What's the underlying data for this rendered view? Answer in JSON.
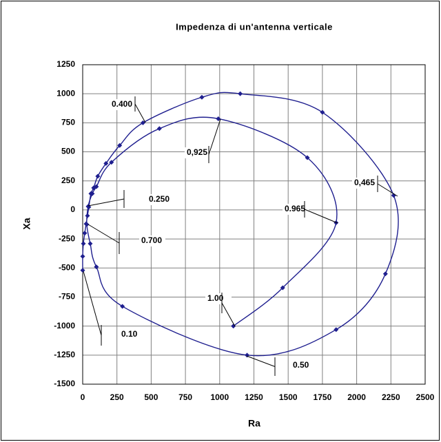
{
  "chart_data": {
    "type": "scatter",
    "title": "Impedenza di un'antenna verticale",
    "x_label": "Ra",
    "y_label": "Xa",
    "xlim": [
      0,
      2500
    ],
    "ylim": [
      -1500,
      1250
    ],
    "xticks": [
      0,
      250,
      500,
      750,
      1000,
      1250,
      1500,
      1750,
      2000,
      2250,
      2500
    ],
    "yticks": [
      -1500,
      -1250,
      -1000,
      -750,
      -500,
      -250,
      0,
      250,
      500,
      750,
      1000,
      1250
    ],
    "grid": true,
    "smooth": true,
    "series": [
      {
        "color": "#1f1f8f",
        "x": [
          0,
          0,
          5,
          15,
          25,
          35,
          45,
          60,
          80,
          110,
          170,
          270,
          440,
          870,
          1150,
          1750,
          2270,
          2210,
          1850,
          1200,
          290,
          100,
          55,
          30,
          40,
          70,
          100,
          210,
          560,
          990,
          1640,
          1850,
          1460,
          1100
        ],
        "values": [
          -520,
          -400,
          -290,
          -200,
          -120,
          -50,
          25,
          140,
          190,
          290,
          400,
          555,
          750,
          970,
          1000,
          840,
          125,
          -550,
          -1030,
          -1250,
          -830,
          -490,
          -290,
          -125,
          30,
          140,
          200,
          410,
          700,
          785,
          450,
          -110,
          -670,
          -1000
        ]
      }
    ],
    "annotations": [
      "0.400",
      "0,925",
      "0.250",
      "0.700",
      "0.10",
      "0,465",
      "0.965",
      "1.00",
      "0.50"
    ]
  }
}
